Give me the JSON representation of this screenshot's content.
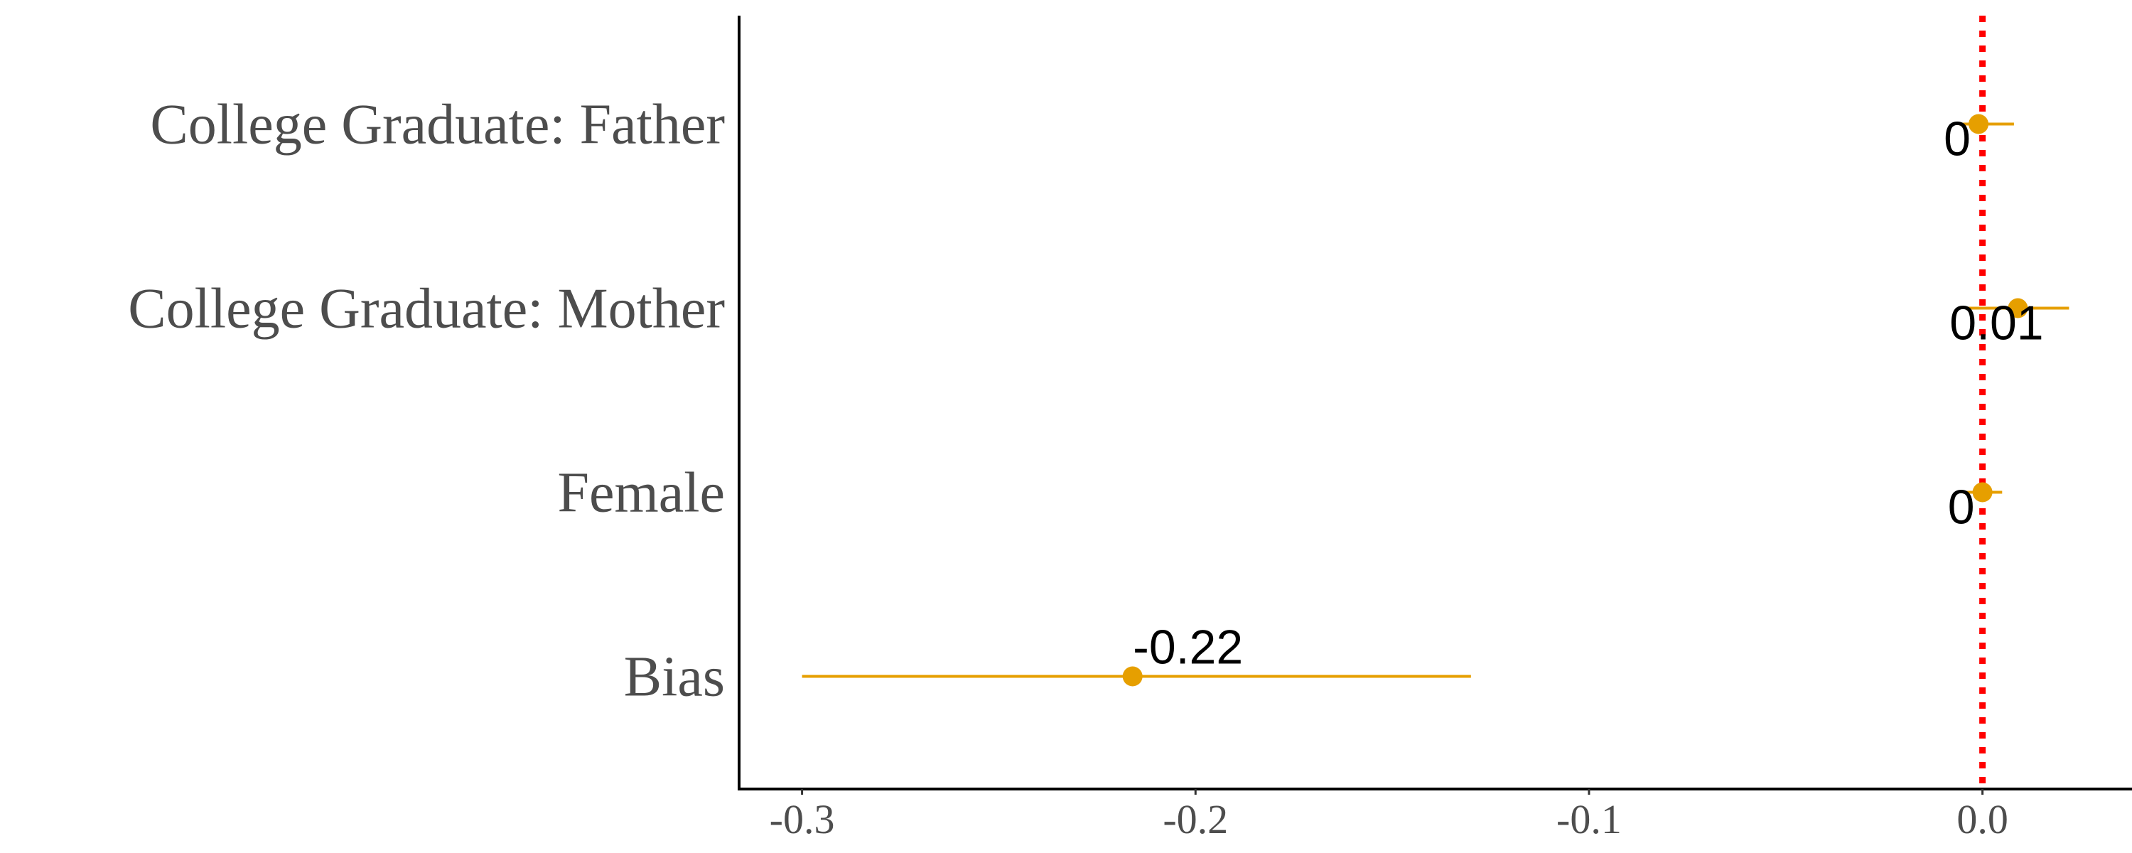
{
  "chart_data": {
    "type": "scatter",
    "orientation": "horizontal",
    "title": "",
    "xlabel": "",
    "ylabel": "",
    "categories": [
      "College Graduate: Father",
      "College Graduate: Mother",
      "Female",
      "Bias"
    ],
    "values": [
      -0.001,
      0.009,
      0.0,
      -0.216
    ],
    "ci_low": [
      -0.006,
      -0.004,
      -0.005,
      -0.3
    ],
    "ci_high": [
      0.008,
      0.022,
      0.005,
      -0.13
    ],
    "labels": [
      "0",
      "0.01",
      "0",
      "-0.22"
    ],
    "xlim": [
      -0.316,
      0.038
    ],
    "xticks": [
      -0.3,
      -0.2,
      -0.1,
      0.0
    ],
    "xtick_labels": [
      "-0.3",
      "-0.2",
      "-0.1",
      "0.0"
    ],
    "reference_line": {
      "x": 0,
      "style": "dotted",
      "color": "#ff0000"
    },
    "point_color": "#e69f00",
    "grid": false,
    "legend": "none"
  }
}
